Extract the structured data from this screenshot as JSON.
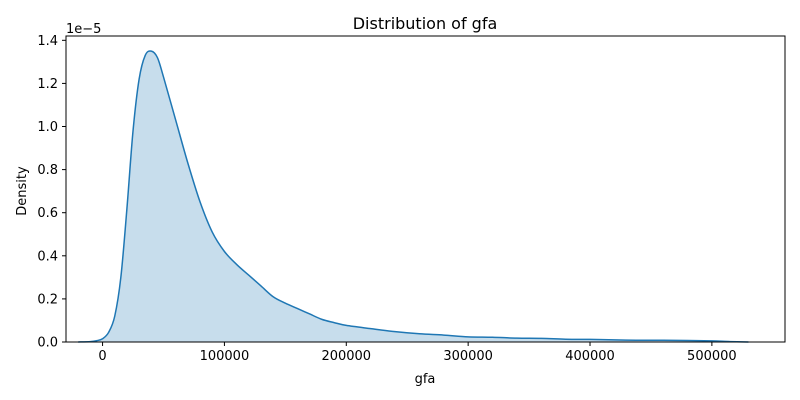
{
  "chart_data": {
    "type": "area",
    "title": "Distribution of gfa",
    "xlabel": "gfa",
    "ylabel": "Density",
    "y_scale_note": "1e−5",
    "xlim": [
      -30000,
      560000
    ],
    "ylim": [
      0,
      1.42
    ],
    "x_ticks": [
      0,
      100000,
      200000,
      300000,
      400000,
      500000
    ],
    "x_tick_labels": [
      "0",
      "100000",
      "200000",
      "300000",
      "400000",
      "500000"
    ],
    "y_ticks": [
      0,
      0.2,
      0.4,
      0.6,
      0.8,
      1.0,
      1.2,
      1.4
    ],
    "y_tick_labels": [
      "0.0",
      "0.2",
      "0.4",
      "0.6",
      "0.8",
      "1.0",
      "1.2",
      "1.4"
    ],
    "grid": false,
    "series": [
      {
        "name": "gfa",
        "color": "#1f77b4",
        "fill_color": "#1f77b4",
        "fill_opacity": 0.25,
        "points": [
          [
            -20000,
            0.0
          ],
          [
            -10000,
            0.002
          ],
          [
            -5000,
            0.006
          ],
          [
            0,
            0.015
          ],
          [
            5000,
            0.045
          ],
          [
            10000,
            0.12
          ],
          [
            15000,
            0.3
          ],
          [
            20000,
            0.62
          ],
          [
            25000,
            0.98
          ],
          [
            30000,
            1.22
          ],
          [
            35000,
            1.33
          ],
          [
            40000,
            1.35
          ],
          [
            45000,
            1.32
          ],
          [
            50000,
            1.23
          ],
          [
            60000,
            1.03
          ],
          [
            70000,
            0.83
          ],
          [
            80000,
            0.65
          ],
          [
            90000,
            0.51
          ],
          [
            100000,
            0.42
          ],
          [
            110000,
            0.36
          ],
          [
            120000,
            0.31
          ],
          [
            130000,
            0.26
          ],
          [
            140000,
            0.21
          ],
          [
            150000,
            0.18
          ],
          [
            160000,
            0.155
          ],
          [
            170000,
            0.13
          ],
          [
            180000,
            0.105
          ],
          [
            190000,
            0.09
          ],
          [
            200000,
            0.077
          ],
          [
            220000,
            0.062
          ],
          [
            240000,
            0.048
          ],
          [
            260000,
            0.038
          ],
          [
            280000,
            0.032
          ],
          [
            300000,
            0.024
          ],
          [
            320000,
            0.022
          ],
          [
            340000,
            0.018
          ],
          [
            360000,
            0.017
          ],
          [
            380000,
            0.013
          ],
          [
            400000,
            0.012
          ],
          [
            420000,
            0.01
          ],
          [
            440000,
            0.008
          ],
          [
            460000,
            0.008
          ],
          [
            480000,
            0.007
          ],
          [
            500000,
            0.005
          ],
          [
            515000,
            0.002
          ],
          [
            530000,
            0.0
          ]
        ]
      }
    ]
  }
}
